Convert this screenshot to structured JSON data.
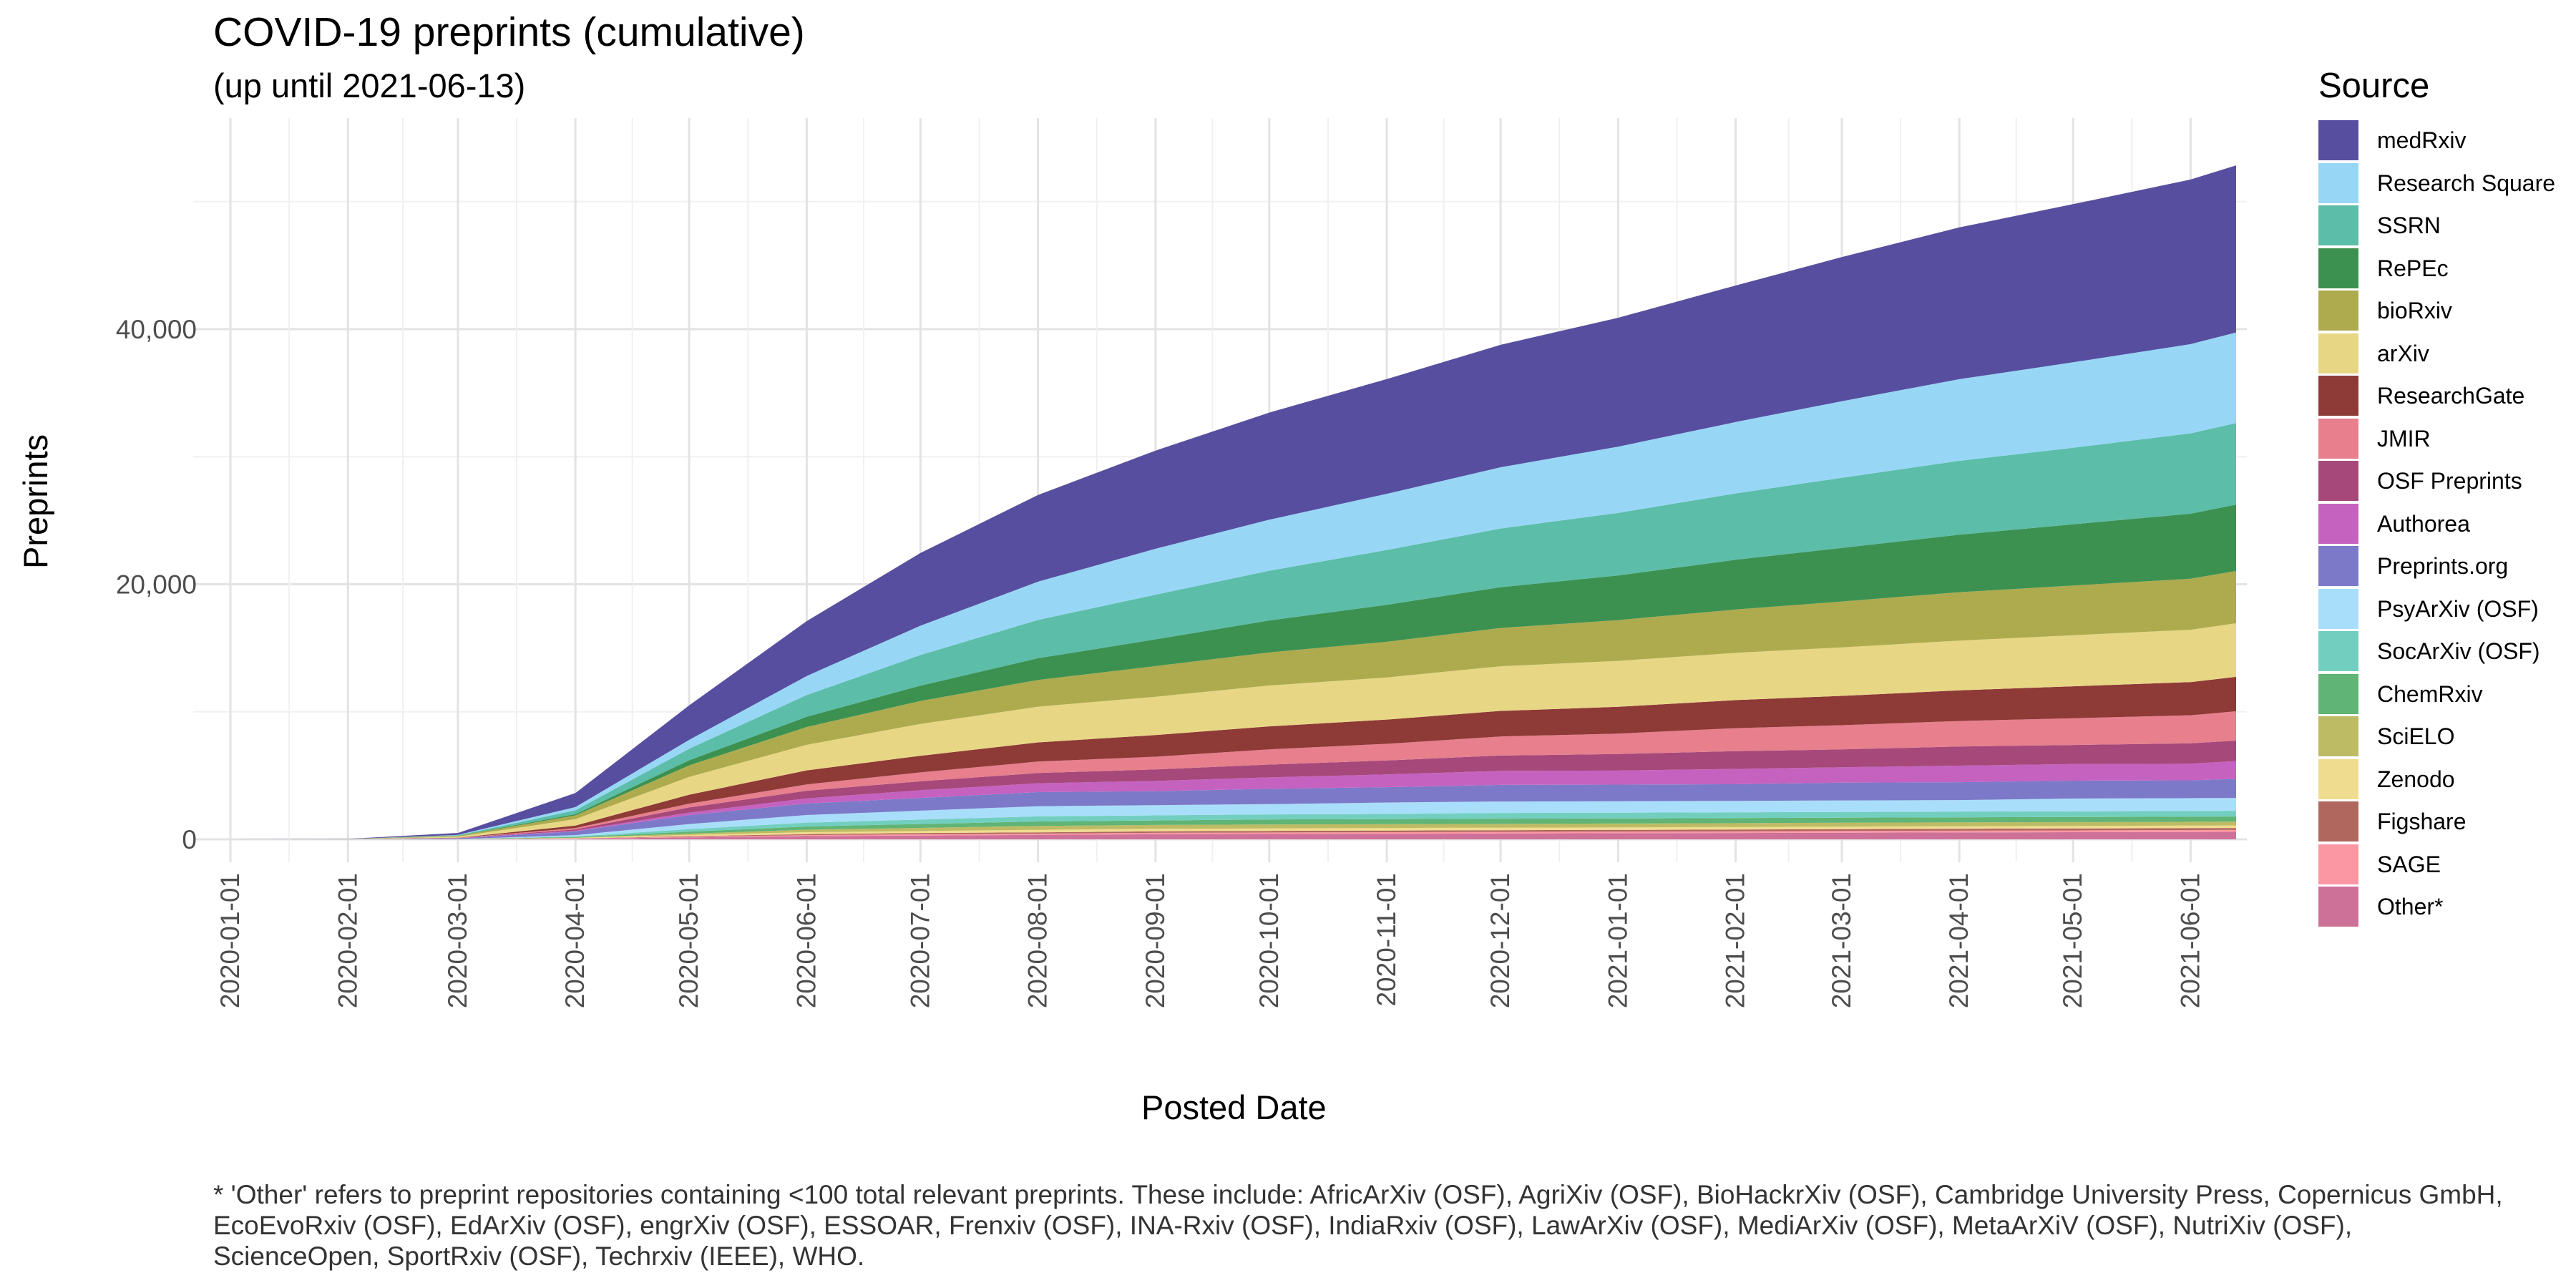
{
  "chart_data": {
    "type": "area",
    "stacked": true,
    "title": "COVID-19 preprints (cumulative)",
    "subtitle": "(up until 2021-06-13)",
    "xlabel": "Posted Date",
    "ylabel": "Preprints",
    "legend_title": "Source",
    "legend_position": "right",
    "grid": true,
    "xlim": [
      "2020-01-01",
      "2021-06-13"
    ],
    "ylim": [
      0,
      55000
    ],
    "y_ticks": [
      0,
      20000,
      40000
    ],
    "y_tick_labels": [
      "0",
      "20,000",
      "40,000"
    ],
    "x_tick_labels": [
      "2020-01-01",
      "2020-02-01",
      "2020-03-01",
      "2020-04-01",
      "2020-05-01",
      "2020-06-01",
      "2020-07-01",
      "2020-08-01",
      "2020-09-01",
      "2020-10-01",
      "2020-11-01",
      "2020-12-01",
      "2021-01-01",
      "2021-02-01",
      "2021-03-01",
      "2021-04-01",
      "2021-05-01",
      "2021-06-01"
    ],
    "x": [
      "2020-01-01",
      "2020-02-01",
      "2020-03-01",
      "2020-04-01",
      "2020-05-01",
      "2020-06-01",
      "2020-07-01",
      "2020-08-01",
      "2020-09-01",
      "2020-10-01",
      "2020-11-01",
      "2020-12-01",
      "2021-01-01",
      "2021-02-01",
      "2021-03-01",
      "2021-04-01",
      "2021-05-01",
      "2021-06-01",
      "2021-06-13"
    ],
    "series": [
      {
        "name": "medRxiv",
        "color": "#574EA0",
        "values": [
          0,
          10,
          150,
          1100,
          2700,
          4300,
          5700,
          6800,
          7700,
          8400,
          9000,
          9600,
          10100,
          10700,
          11300,
          11900,
          12400,
          12900,
          13100
        ]
      },
      {
        "name": "Research Square",
        "color": "#97D7F5",
        "values": [
          0,
          0,
          30,
          250,
          700,
          1500,
          2300,
          3000,
          3600,
          4000,
          4400,
          4800,
          5200,
          5600,
          6000,
          6400,
          6700,
          7000,
          7100
        ]
      },
      {
        "name": "SSRN",
        "color": "#5CBDA9",
        "values": [
          0,
          0,
          40,
          300,
          900,
          1700,
          2400,
          3000,
          3500,
          3900,
          4300,
          4600,
          4900,
          5200,
          5500,
          5800,
          6000,
          6300,
          6400
        ]
      },
      {
        "name": "RePEc",
        "color": "#3C9151",
        "values": [
          0,
          0,
          10,
          100,
          400,
          800,
          1200,
          1700,
          2100,
          2500,
          2900,
          3200,
          3500,
          3900,
          4200,
          4500,
          4800,
          5100,
          5200
        ]
      },
      {
        "name": "bioRxiv",
        "color": "#AEAB4F",
        "values": [
          0,
          10,
          60,
          300,
          900,
          1400,
          1800,
          2100,
          2400,
          2600,
          2800,
          3000,
          3200,
          3400,
          3600,
          3800,
          3900,
          4000,
          4100
        ]
      },
      {
        "name": "arXiv",
        "color": "#E7D785",
        "values": [
          0,
          10,
          80,
          500,
          1400,
          2000,
          2500,
          2800,
          3000,
          3200,
          3300,
          3500,
          3600,
          3700,
          3800,
          3900,
          4000,
          4100,
          4200
        ]
      },
      {
        "name": "ResearchGate",
        "color": "#8E3A37",
        "values": [
          0,
          0,
          20,
          200,
          700,
          1100,
          1300,
          1500,
          1700,
          1800,
          1900,
          2000,
          2100,
          2200,
          2300,
          2400,
          2500,
          2600,
          2700
        ]
      },
      {
        "name": "JMIR",
        "color": "#E77F8D",
        "values": [
          0,
          0,
          10,
          100,
          300,
          500,
          700,
          900,
          1000,
          1200,
          1300,
          1500,
          1600,
          1800,
          1900,
          2000,
          2100,
          2200,
          2300
        ]
      },
      {
        "name": "OSF Preprints",
        "color": "#A6487A",
        "values": [
          0,
          0,
          10,
          100,
          400,
          600,
          700,
          800,
          900,
          1000,
          1100,
          1200,
          1300,
          1400,
          1400,
          1500,
          1500,
          1600,
          1600
        ]
      },
      {
        "name": "Authorea",
        "color": "#C562C0",
        "values": [
          0,
          0,
          10,
          50,
          200,
          400,
          600,
          700,
          800,
          900,
          1000,
          1100,
          1100,
          1200,
          1200,
          1300,
          1300,
          1300,
          1400
        ]
      },
      {
        "name": "Preprints.org",
        "color": "#7D79C9",
        "values": [
          0,
          10,
          50,
          300,
          700,
          900,
          1000,
          1100,
          1100,
          1200,
          1200,
          1300,
          1300,
          1300,
          1400,
          1400,
          1400,
          1400,
          1500
        ]
      },
      {
        "name": "PsyArXiv (OSF)",
        "color": "#A9DEFA",
        "values": [
          0,
          0,
          5,
          100,
          400,
          600,
          700,
          800,
          800,
          800,
          900,
          900,
          900,
          900,
          900,
          900,
          1000,
          1000,
          1000
        ]
      },
      {
        "name": "SocArXiv (OSF)",
        "color": "#72CFC0",
        "values": [
          0,
          0,
          5,
          50,
          200,
          300,
          350,
          400,
          400,
          400,
          400,
          450,
          450,
          450,
          450,
          450,
          450,
          450,
          450
        ]
      },
      {
        "name": "ChemRxiv",
        "color": "#60B475",
        "values": [
          0,
          0,
          5,
          50,
          150,
          250,
          300,
          350,
          350,
          400,
          400,
          400,
          400,
          400,
          400,
          400,
          400,
          400,
          400
        ]
      },
      {
        "name": "SciELO",
        "color": "#BDBB64",
        "values": [
          0,
          0,
          0,
          10,
          100,
          200,
          250,
          300,
          300,
          300,
          300,
          300,
          300,
          300,
          300,
          300,
          300,
          300,
          300
        ]
      },
      {
        "name": "Zenodo",
        "color": "#F0DC8E",
        "values": [
          0,
          0,
          5,
          50,
          100,
          150,
          150,
          200,
          200,
          200,
          200,
          200,
          200,
          200,
          200,
          200,
          200,
          200,
          200
        ]
      },
      {
        "name": "Figshare",
        "color": "#B0675E",
        "values": [
          0,
          0,
          0,
          10,
          50,
          80,
          100,
          100,
          120,
          120,
          130,
          130,
          130,
          140,
          140,
          150,
          150,
          150,
          150
        ]
      },
      {
        "name": "SAGE",
        "color": "#FB97A2",
        "values": [
          0,
          0,
          0,
          10,
          50,
          80,
          100,
          100,
          110,
          120,
          120,
          130,
          130,
          130,
          140,
          140,
          140,
          150,
          150
        ]
      },
      {
        "name": "Other*",
        "color": "#CE7199",
        "values": [
          0,
          0,
          10,
          50,
          150,
          250,
          300,
          350,
          400,
          420,
          440,
          460,
          480,
          500,
          520,
          540,
          560,
          580,
          590
        ]
      }
    ]
  },
  "footnote": "* 'Other' refers to preprint repositories containing <100 total relevant preprints. These include: AfricArXiv (OSF), AgriXiv (OSF), BioHackrXiv (OSF), Cambridge University Press, Copernicus GmbH, EcoEvoRxiv (OSF), EdArXiv (OSF), engrXiv (OSF), ESSOAR, Frenxiv (OSF), INA-Rxiv (OSF), IndiaRxiv (OSF), LawArXiv (OSF), MediArXiv (OSF), MetaArXiV (OSF), NutriXiv (OSF), ScienceOpen, SportRxiv (OSF), Techrxiv (IEEE), WHO."
}
